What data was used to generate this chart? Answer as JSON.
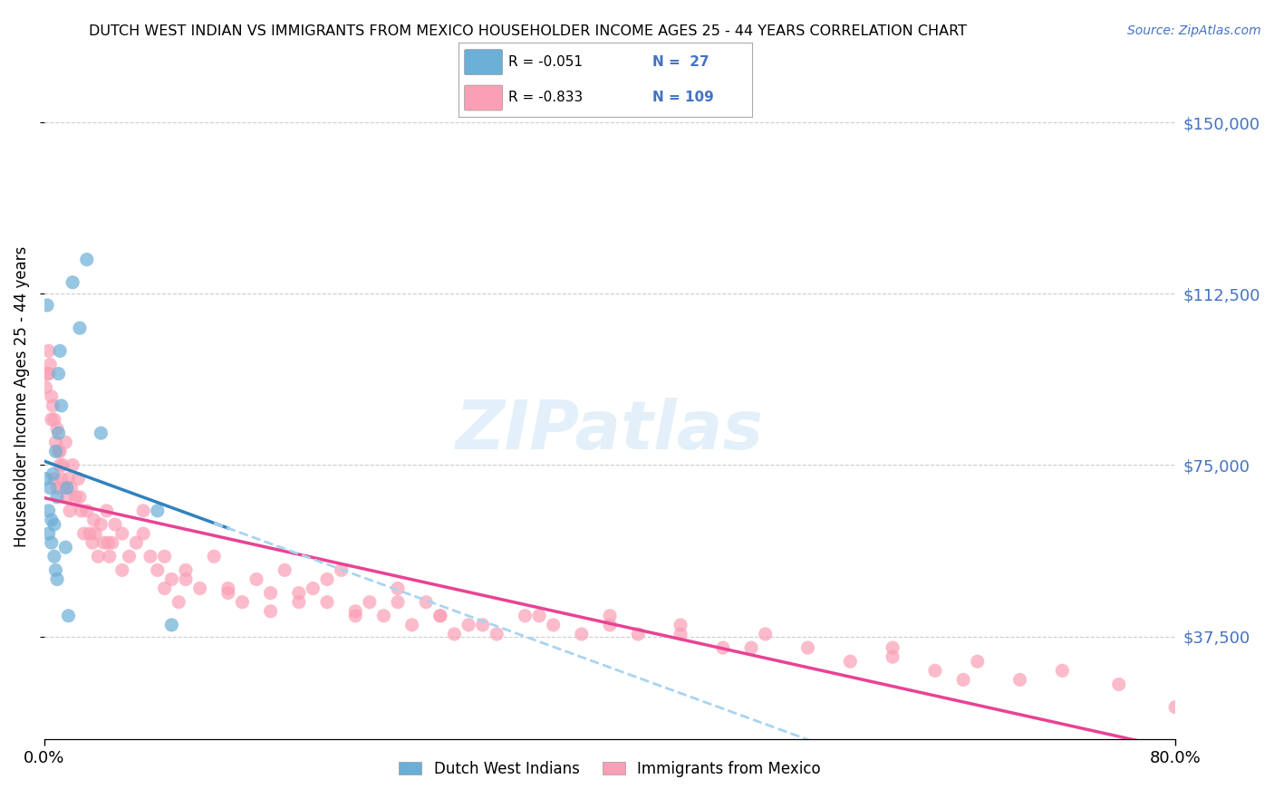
{
  "title": "DUTCH WEST INDIAN VS IMMIGRANTS FROM MEXICO HOUSEHOLDER INCOME AGES 25 - 44 YEARS CORRELATION CHART",
  "source": "Source: ZipAtlas.com",
  "ylabel": "Householder Income Ages 25 - 44 years",
  "xlim": [
    0.0,
    0.8
  ],
  "ylim": [
    15000,
    165000
  ],
  "yticks": [
    37500,
    75000,
    112500,
    150000
  ],
  "ytick_labels": [
    "$37,500",
    "$75,000",
    "$112,500",
    "$150,000"
  ],
  "xticks": [
    0.0,
    0.8
  ],
  "xtick_labels": [
    "0.0%",
    "80.0%"
  ],
  "legend_r1": "R = -0.051",
  "legend_n1": "N =  27",
  "legend_r2": "R = -0.833",
  "legend_n2": "N = 109",
  "color_blue": "#6baed6",
  "color_pink": "#fa9fb5",
  "color_blue_line": "#3182bd",
  "color_pink_line": "#e84393",
  "color_blue_dash": "#a8d4f0",
  "watermark": "ZIPatlas",
  "dutch_x": [
    0.001,
    0.002,
    0.003,
    0.004,
    0.005,
    0.005,
    0.006,
    0.007,
    0.008,
    0.009,
    0.01,
    0.01,
    0.011,
    0.012,
    0.015,
    0.016,
    0.017,
    0.02,
    0.025,
    0.03,
    0.04,
    0.08,
    0.09,
    0.003,
    0.007,
    0.008,
    0.009
  ],
  "dutch_y": [
    72000,
    110000,
    65000,
    70000,
    63000,
    58000,
    73000,
    62000,
    78000,
    50000,
    95000,
    82000,
    100000,
    88000,
    57000,
    70000,
    42000,
    115000,
    105000,
    120000,
    82000,
    65000,
    40000,
    60000,
    55000,
    52000,
    68000
  ],
  "mexico_x": [
    0.001,
    0.002,
    0.003,
    0.004,
    0.005,
    0.006,
    0.007,
    0.008,
    0.009,
    0.01,
    0.011,
    0.012,
    0.013,
    0.014,
    0.015,
    0.016,
    0.017,
    0.018,
    0.019,
    0.02,
    0.022,
    0.024,
    0.026,
    0.028,
    0.03,
    0.032,
    0.034,
    0.036,
    0.038,
    0.04,
    0.042,
    0.044,
    0.046,
    0.048,
    0.05,
    0.055,
    0.06,
    0.065,
    0.07,
    0.075,
    0.08,
    0.085,
    0.09,
    0.095,
    0.1,
    0.11,
    0.12,
    0.13,
    0.14,
    0.15,
    0.16,
    0.17,
    0.18,
    0.19,
    0.2,
    0.21,
    0.22,
    0.23,
    0.24,
    0.25,
    0.26,
    0.27,
    0.28,
    0.29,
    0.3,
    0.32,
    0.34,
    0.36,
    0.38,
    0.4,
    0.42,
    0.45,
    0.48,
    0.51,
    0.54,
    0.57,
    0.6,
    0.63,
    0.66,
    0.69,
    0.003,
    0.005,
    0.007,
    0.009,
    0.011,
    0.025,
    0.035,
    0.045,
    0.055,
    0.07,
    0.085,
    0.1,
    0.13,
    0.16,
    0.2,
    0.25,
    0.31,
    0.4,
    0.5,
    0.65,
    0.72,
    0.76,
    0.8,
    0.6,
    0.45,
    0.35,
    0.28,
    0.22,
    0.18
  ],
  "mexico_y": [
    92000,
    95000,
    100000,
    97000,
    90000,
    88000,
    85000,
    80000,
    83000,
    78000,
    78000,
    72000,
    75000,
    70000,
    80000,
    68000,
    72000,
    65000,
    70000,
    75000,
    68000,
    72000,
    65000,
    60000,
    65000,
    60000,
    58000,
    60000,
    55000,
    62000,
    58000,
    65000,
    55000,
    58000,
    62000,
    60000,
    55000,
    58000,
    65000,
    55000,
    52000,
    48000,
    50000,
    45000,
    52000,
    48000,
    55000,
    48000,
    45000,
    50000,
    47000,
    52000,
    45000,
    48000,
    45000,
    52000,
    42000,
    45000,
    42000,
    48000,
    40000,
    45000,
    42000,
    38000,
    40000,
    38000,
    42000,
    40000,
    38000,
    42000,
    38000,
    40000,
    35000,
    38000,
    35000,
    32000,
    35000,
    30000,
    32000,
    28000,
    95000,
    85000,
    72000,
    70000,
    75000,
    68000,
    63000,
    58000,
    52000,
    60000,
    55000,
    50000,
    47000,
    43000,
    50000,
    45000,
    40000,
    40000,
    35000,
    28000,
    30000,
    27000,
    22000,
    33000,
    38000,
    42000,
    42000,
    43000,
    47000
  ]
}
